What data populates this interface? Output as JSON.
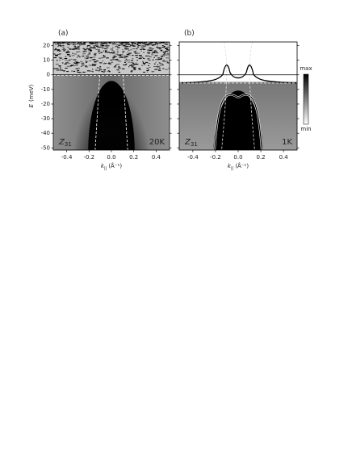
{
  "panels": [
    {
      "label": "(a)",
      "sample": {
        "symbol": "Z",
        "subscript": "31"
      },
      "temperature": "20K",
      "temperature_color": "#f07020",
      "xlabel": {
        "symbol": "k",
        "subscript": "||",
        "unit": "(Å⁻¹)"
      },
      "ylabel": {
        "symbol": "E",
        "unit": "(meV)"
      },
      "xlim": [
        -0.52,
        0.52
      ],
      "ylim": [
        -51.5,
        22.5
      ],
      "xticks": [
        -0.4,
        -0.2,
        {
          "value": 0,
          "label": "0.0"
        },
        0.2,
        0.4
      ],
      "yticks": [
        20,
        10,
        0,
        -10,
        -20,
        -30,
        -40,
        -50
      ],
      "ytick_labels": true
    },
    {
      "label": "(b)",
      "sample": {
        "symbol": "Z",
        "subscript": "31"
      },
      "temperature": "1K",
      "temperature_color": "#2020e0",
      "xlabel": {
        "symbol": "k",
        "subscript": "||",
        "unit": "(Å⁻¹)"
      },
      "xlim": [
        -0.52,
        0.52
      ],
      "ylim": [
        -51.5,
        22.5
      ],
      "xticks": [
        -0.4,
        -0.2,
        {
          "value": 0,
          "label": "0.0"
        },
        0.2,
        0.4
      ],
      "yticks": [
        20,
        10,
        0,
        -10,
        -20,
        -30,
        -40,
        -50
      ],
      "ytick_labels": false,
      "colorbar": {
        "top": "max",
        "bottom": "min"
      }
    }
  ]
}
